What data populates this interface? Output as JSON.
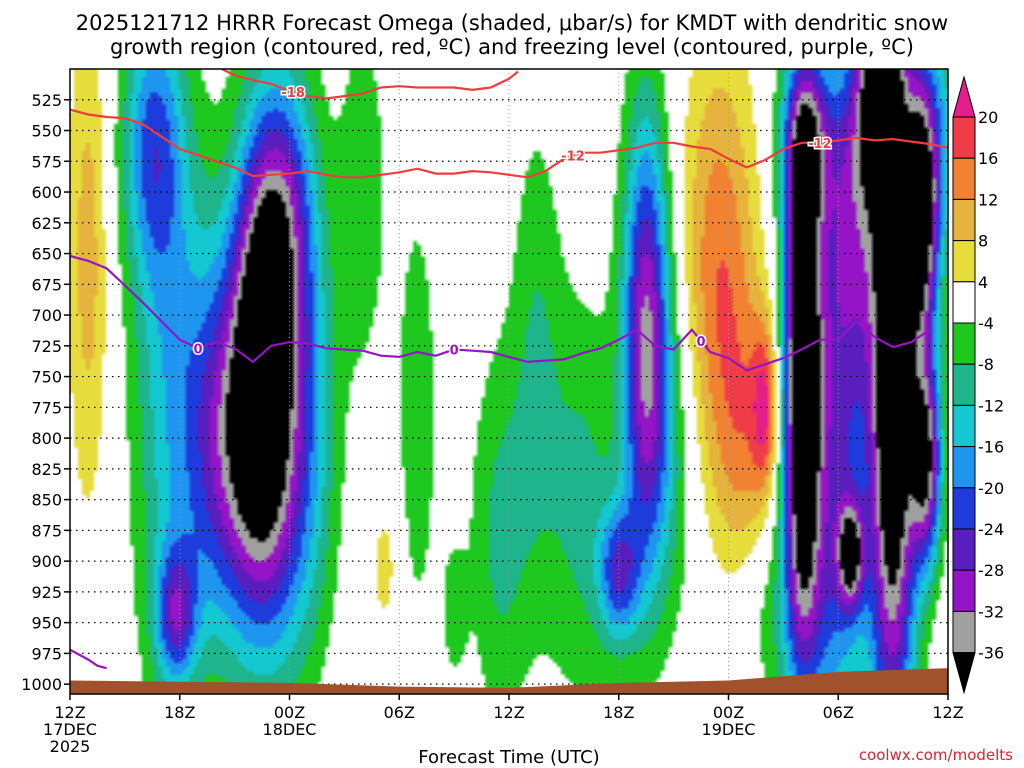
{
  "title_line1": "2025121712 HRRR Forecast Omega (shaded, μbar/s) for KMDT with dendritic snow",
  "title_line2": "growth region (contoured, red, ºC) and freezing level (contoured, purple, ºC)",
  "x_axis_title": "Forecast Time (UTC)",
  "credit": "coolwx.com/modelts",
  "chart_data": {
    "type": "heatmap",
    "x_ticks": [
      {
        "h": 0,
        "lines": [
          "12Z",
          "17DEC",
          "2025"
        ]
      },
      {
        "h": 6,
        "lines": [
          "18Z"
        ]
      },
      {
        "h": 12,
        "lines": [
          "00Z",
          "18DEC"
        ]
      },
      {
        "h": 18,
        "lines": [
          "06Z"
        ]
      },
      {
        "h": 24,
        "lines": [
          "12Z"
        ]
      },
      {
        "h": 30,
        "lines": [
          "18Z"
        ]
      },
      {
        "h": 36,
        "lines": [
          "00Z",
          "19DEC"
        ]
      },
      {
        "h": 42,
        "lines": [
          "06Z"
        ]
      },
      {
        "h": 48,
        "lines": [
          "12Z"
        ]
      }
    ],
    "xlim_hours": [
      0,
      48
    ],
    "y_ticks": [
      525,
      550,
      575,
      600,
      625,
      650,
      675,
      700,
      725,
      750,
      775,
      800,
      825,
      850,
      875,
      900,
      925,
      950,
      975,
      1000
    ],
    "ylim_mb": [
      500,
      1008
    ],
    "colorbar": {
      "labels": [
        "20",
        "16",
        "12",
        "8",
        "4",
        "-4",
        "-8",
        "-12",
        "-16",
        "-20",
        "-24",
        "-28",
        "-32",
        "-36"
      ],
      "bins": [
        {
          "lo": 16,
          "hi": 20,
          "color": "#f03c46"
        },
        {
          "lo": 12,
          "hi": 16,
          "color": "#f08232"
        },
        {
          "lo": 8,
          "hi": 12,
          "color": "#e6b43c"
        },
        {
          "lo": 4,
          "hi": 8,
          "color": "#e6dc3c"
        },
        {
          "lo": -4,
          "hi": 4,
          "color": "#ffffff"
        },
        {
          "lo": -8,
          "hi": -4,
          "color": "#1ec81e"
        },
        {
          "lo": -12,
          "hi": -8,
          "color": "#1eb48c"
        },
        {
          "lo": -16,
          "hi": -12,
          "color": "#14c8d2"
        },
        {
          "lo": -20,
          "hi": -16,
          "color": "#1e96f0"
        },
        {
          "lo": -24,
          "hi": -20,
          "color": "#1e3cdc"
        },
        {
          "lo": -28,
          "hi": -24,
          "color": "#5a1ebe"
        },
        {
          "lo": -32,
          "hi": -28,
          "color": "#9614c8"
        },
        {
          "lo": -36,
          "hi": -32,
          "color": "#a0a0a0"
        }
      ],
      "high_arrow_color": "#e61e8c",
      "low_arrow_color": "#000000"
    },
    "omega_centers": [
      {
        "t": 1.0,
        "p": 650,
        "a": 10,
        "st": 0.8,
        "sp": 150
      },
      {
        "t": 4.5,
        "p": 560,
        "a": -18,
        "st": 1.2,
        "sp": 80
      },
      {
        "t": 5.5,
        "p": 760,
        "a": -14,
        "st": 1.5,
        "sp": 170
      },
      {
        "t": 5.8,
        "p": 945,
        "a": -20,
        "st": 0.8,
        "sp": 40
      },
      {
        "t": 8.3,
        "p": 800,
        "a": -22,
        "st": 1.4,
        "sp": 110
      },
      {
        "t": 10.5,
        "p": 705,
        "a": -34,
        "st": 1.2,
        "sp": 120
      },
      {
        "t": 10.8,
        "p": 850,
        "a": -20,
        "st": 1.5,
        "sp": 110
      },
      {
        "t": 12.0,
        "p": 620,
        "a": -18,
        "st": 1.2,
        "sp": 90
      },
      {
        "t": 13.0,
        "p": 800,
        "a": -12,
        "st": 1.2,
        "sp": 120
      },
      {
        "t": 16.0,
        "p": 600,
        "a": -7,
        "st": 1.0,
        "sp": 110
      },
      {
        "t": 17.2,
        "p": 905,
        "a": 6,
        "st": 0.6,
        "sp": 40
      },
      {
        "t": 19.0,
        "p": 780,
        "a": -7,
        "st": 0.8,
        "sp": 130
      },
      {
        "t": 21.0,
        "p": 940,
        "a": -6,
        "st": 0.5,
        "sp": 40
      },
      {
        "t": 23.5,
        "p": 880,
        "a": -9,
        "st": 1.2,
        "sp": 110
      },
      {
        "t": 25.5,
        "p": 720,
        "a": -7,
        "st": 1.0,
        "sp": 140
      },
      {
        "t": 28.0,
        "p": 850,
        "a": -9,
        "st": 1.5,
        "sp": 120
      },
      {
        "t": 30.0,
        "p": 910,
        "a": -20,
        "st": 0.8,
        "sp": 40
      },
      {
        "t": 31.5,
        "p": 720,
        "a": -32,
        "st": 0.9,
        "sp": 130
      },
      {
        "t": 33.0,
        "p": 820,
        "a": -8,
        "st": 1.2,
        "sp": 100
      },
      {
        "t": 35.5,
        "p": 680,
        "a": 16,
        "st": 1.5,
        "sp": 140
      },
      {
        "t": 37.0,
        "p": 810,
        "a": 8,
        "st": 1.0,
        "sp": 80
      },
      {
        "t": 38.0,
        "p": 775,
        "a": 16,
        "st": 0.5,
        "sp": 50
      },
      {
        "t": 39.0,
        "p": 940,
        "a": -7,
        "st": 2.0,
        "sp": 60
      },
      {
        "t": 40.0,
        "p": 750,
        "a": -42,
        "st": 0.7,
        "sp": 150
      },
      {
        "t": 40.3,
        "p": 560,
        "a": -22,
        "st": 1.0,
        "sp": 50
      },
      {
        "t": 41.8,
        "p": 790,
        "a": -24,
        "st": 1.4,
        "sp": 190
      },
      {
        "t": 42.7,
        "p": 895,
        "a": -26,
        "st": 0.5,
        "sp": 30
      },
      {
        "t": 43.0,
        "p": 620,
        "a": -14,
        "st": 1.0,
        "sp": 90
      },
      {
        "t": 44.2,
        "p": 520,
        "a": -30,
        "st": 1.0,
        "sp": 60
      },
      {
        "t": 45.0,
        "p": 760,
        "a": -46,
        "st": 0.9,
        "sp": 210
      },
      {
        "t": 46.6,
        "p": 610,
        "a": -40,
        "st": 0.6,
        "sp": 80
      },
      {
        "t": 46.8,
        "p": 820,
        "a": -34,
        "st": 0.6,
        "sp": 60
      },
      {
        "t": 47.7,
        "p": 560,
        "a": -12,
        "st": 0.6,
        "sp": 80
      }
    ],
    "contours": [
      {
        "name": "red-12",
        "label": "-12",
        "color": "#f03c3c",
        "points": [
          [
            0,
            533
          ],
          [
            1,
            537
          ],
          [
            2,
            539
          ],
          [
            3,
            540
          ],
          [
            4,
            545
          ],
          [
            5,
            555
          ],
          [
            6,
            565
          ],
          [
            7,
            570
          ],
          [
            8,
            575
          ],
          [
            9,
            580
          ],
          [
            10,
            587
          ],
          [
            11,
            586
          ],
          [
            12,
            585
          ],
          [
            13,
            583
          ],
          [
            14,
            586
          ],
          [
            15,
            588
          ],
          [
            16,
            588
          ],
          [
            17,
            586
          ],
          [
            18,
            584
          ],
          [
            19,
            581
          ],
          [
            20,
            585
          ],
          [
            21,
            585
          ],
          [
            22,
            583
          ],
          [
            23,
            584
          ],
          [
            24,
            586
          ],
          [
            25,
            588
          ],
          [
            26,
            583
          ],
          [
            27,
            573
          ],
          [
            28,
            568
          ],
          [
            29,
            568
          ],
          [
            30,
            566
          ],
          [
            31,
            564
          ],
          [
            32,
            560
          ],
          [
            33,
            560
          ],
          [
            34,
            563
          ],
          [
            35,
            565
          ],
          [
            36,
            573
          ],
          [
            37,
            580
          ],
          [
            38,
            574
          ],
          [
            39,
            565
          ],
          [
            40,
            560
          ],
          [
            41,
            560
          ],
          [
            42,
            558
          ],
          [
            43,
            556
          ],
          [
            44,
            558
          ],
          [
            45,
            557
          ],
          [
            46,
            559
          ],
          [
            47,
            561
          ],
          [
            48,
            564
          ]
        ],
        "label_hours": [
          27.5,
          41.0
        ]
      },
      {
        "name": "red-18",
        "label": "-18",
        "color": "#f03c3c",
        "points": [
          [
            8.3,
            500
          ],
          [
            9,
            505
          ],
          [
            10,
            509
          ],
          [
            11,
            512
          ],
          [
            12,
            518
          ],
          [
            13,
            522
          ],
          [
            14,
            524
          ],
          [
            15,
            522
          ],
          [
            16,
            520
          ],
          [
            17,
            515
          ],
          [
            18,
            514
          ],
          [
            19,
            515
          ],
          [
            20,
            515
          ],
          [
            21,
            515
          ],
          [
            22,
            517
          ],
          [
            23,
            515
          ],
          [
            24,
            508
          ],
          [
            24.5,
            502
          ]
        ],
        "label_hours": [
          12.2
        ]
      },
      {
        "name": "purple-0",
        "label": "0",
        "color": "#9614c8",
        "points": [
          [
            0,
            652
          ],
          [
            1,
            656
          ],
          [
            2,
            662
          ],
          [
            3,
            676
          ],
          [
            4,
            690
          ],
          [
            5,
            705
          ],
          [
            6,
            720
          ],
          [
            7,
            727
          ],
          [
            8,
            722
          ],
          [
            9,
            727
          ],
          [
            10,
            738
          ],
          [
            11,
            725
          ],
          [
            12,
            722
          ],
          [
            13,
            723
          ],
          [
            14,
            727
          ],
          [
            15,
            728
          ],
          [
            16,
            729
          ],
          [
            17,
            733
          ],
          [
            18,
            734
          ],
          [
            19,
            730
          ],
          [
            20,
            733
          ],
          [
            21,
            728
          ],
          [
            22,
            729
          ],
          [
            23,
            730
          ],
          [
            24,
            734
          ],
          [
            25,
            738
          ],
          [
            26,
            737
          ],
          [
            27,
            736
          ],
          [
            28,
            731
          ],
          [
            29,
            727
          ],
          [
            30,
            720
          ],
          [
            31,
            712
          ],
          [
            32,
            725
          ],
          [
            33,
            728
          ],
          [
            34,
            712
          ],
          [
            35,
            730
          ],
          [
            36,
            735
          ],
          [
            37,
            745
          ],
          [
            38,
            740
          ],
          [
            39,
            735
          ],
          [
            40,
            728
          ],
          [
            41,
            720
          ],
          [
            42,
            720
          ],
          [
            43,
            705
          ],
          [
            44,
            718
          ],
          [
            45,
            726
          ],
          [
            46,
            722
          ],
          [
            47,
            712
          ]
        ],
        "label_hours": [
          7.0,
          21.0,
          34.5
        ]
      },
      {
        "name": "purple-0-surface",
        "label": "",
        "color": "#9614c8",
        "points": [
          [
            0,
            972
          ],
          [
            1,
            980
          ],
          [
            1.5,
            985
          ],
          [
            2,
            987
          ]
        ],
        "label_hours": []
      }
    ],
    "terrain_color": "#a0522d",
    "terrain_mb": [
      [
        0,
        997
      ],
      [
        6,
        998
      ],
      [
        12,
        999
      ],
      [
        18,
        1002
      ],
      [
        24,
        1003
      ],
      [
        30,
        999
      ],
      [
        36,
        997
      ],
      [
        42,
        990
      ],
      [
        48,
        987
      ]
    ]
  }
}
